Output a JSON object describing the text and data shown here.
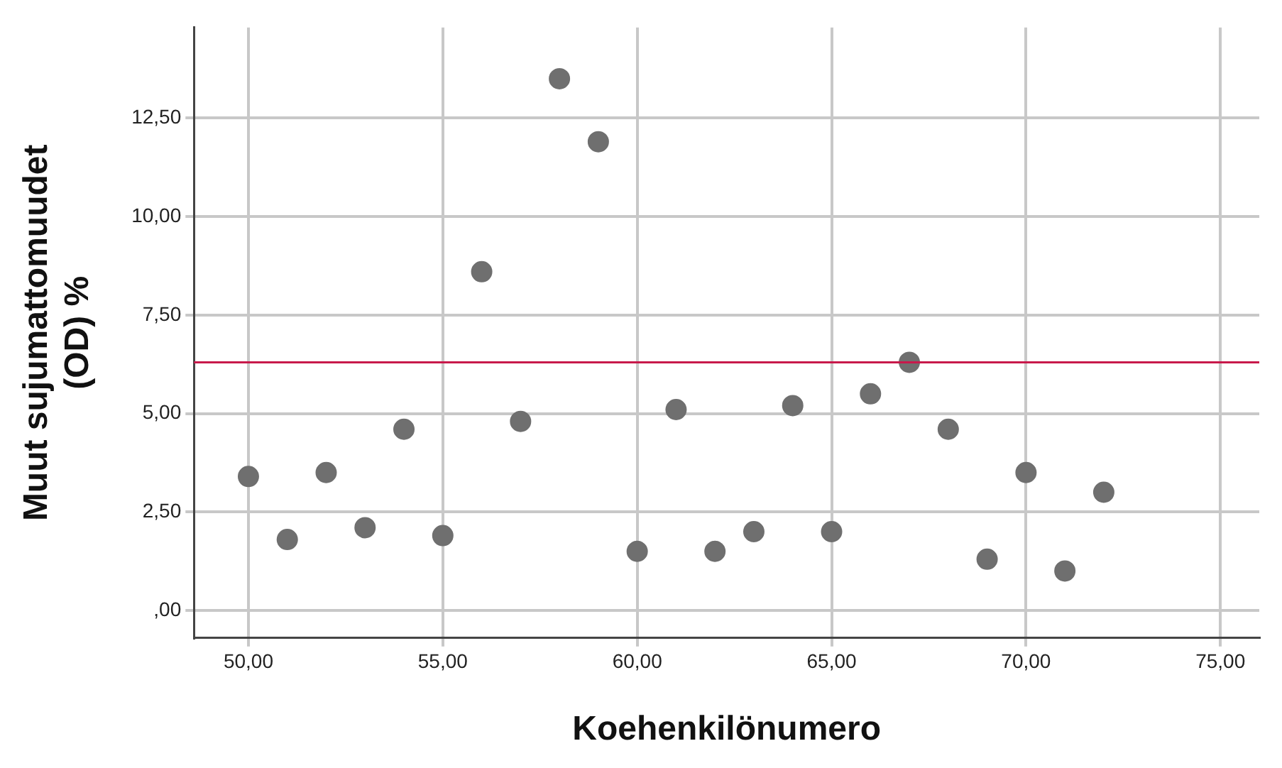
{
  "chart_data": {
    "type": "scatter",
    "xlabel": "Koehenkilönumero",
    "ylabel": "Muut sujumattomuudet (OD) %",
    "x": [
      50,
      51,
      52,
      53,
      54,
      55,
      56,
      57,
      58,
      59,
      60,
      61,
      62,
      63,
      64,
      65,
      66,
      67,
      68,
      69,
      70,
      71,
      72
    ],
    "series": [
      {
        "color": "#6f6f6f",
        "values": [
          3.4,
          1.8,
          3.5,
          2.1,
          4.6,
          1.9,
          8.6,
          4.8,
          13.5,
          11.9,
          1.5,
          5.1,
          1.5,
          2.0,
          5.2,
          2.0,
          5.5,
          6.3,
          4.6,
          1.3,
          3.5,
          1.0,
          3.0
        ]
      }
    ],
    "xlim": [
      48.6,
      76
    ],
    "ylim": [
      -0.7,
      14.8
    ],
    "xticks": [
      {
        "value": 50,
        "label": "50,00"
      },
      {
        "value": 55,
        "label": "55,00"
      },
      {
        "value": 60,
        "label": "60,00"
      },
      {
        "value": 65,
        "label": "65,00"
      },
      {
        "value": 70,
        "label": "70,00"
      },
      {
        "value": 75,
        "label": "75,00"
      }
    ],
    "yticks": [
      {
        "value": 0,
        "label": ",00"
      },
      {
        "value": 2.5,
        "label": "2,50"
      },
      {
        "value": 5,
        "label": "5,00"
      },
      {
        "value": 7.5,
        "label": "7,50"
      },
      {
        "value": 10,
        "label": "10,00"
      },
      {
        "value": 12.5,
        "label": "12,50"
      }
    ],
    "ref_lines": [
      {
        "axis": "y",
        "value": 6.3,
        "color": "#c8194b"
      }
    ],
    "grid": true,
    "legend": false,
    "marker": "circle"
  }
}
